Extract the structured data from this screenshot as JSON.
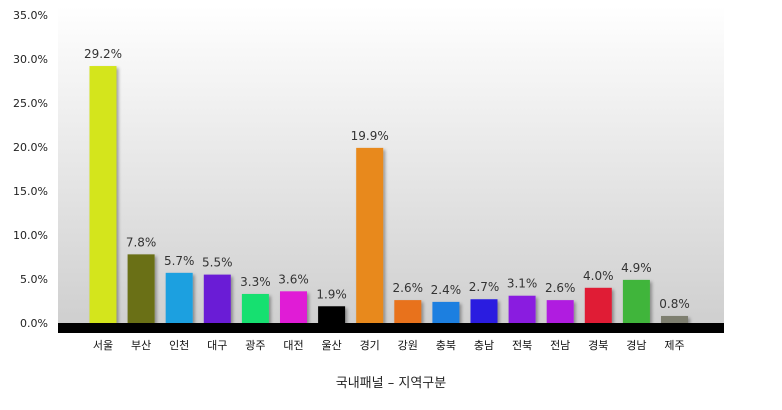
{
  "chart_data": {
    "type": "bar",
    "title": "",
    "xlabel": "국내패널 – 지역구분",
    "ylabel": "",
    "ylim": [
      0,
      35
    ],
    "y_ticks": [
      "0.0%",
      "5.0%",
      "10.0%",
      "15.0%",
      "20.0%",
      "25.0%",
      "30.0%",
      "35.0%"
    ],
    "grid": false,
    "legend": "none",
    "categories": [
      "서울",
      "부산",
      "인천",
      "대구",
      "광주",
      "대전",
      "울산",
      "경기",
      "강원",
      "충북",
      "충남",
      "전북",
      "전남",
      "경북",
      "경남",
      "제주"
    ],
    "values": [
      29.2,
      7.8,
      5.7,
      5.5,
      3.3,
      3.6,
      1.9,
      19.9,
      2.6,
      2.4,
      2.7,
      3.1,
      2.6,
      4.0,
      4.9,
      0.8
    ],
    "value_labels": [
      "29.2%",
      "7.8%",
      "5.7%",
      "5.5%",
      "3.3%",
      "3.6%",
      "1.9%",
      "19.9%",
      "2.6%",
      "2.4%",
      "2.7%",
      "3.1%",
      "2.6%",
      "4.0%",
      "4.9%",
      "0.8%"
    ],
    "colors": [
      "#d4e51c",
      "#6b7016",
      "#1fa0e0",
      "#6a1fd6",
      "#19e070",
      "#e01fd6",
      "#000000",
      "#e8891a",
      "#e8721a",
      "#1f7fe0",
      "#2a1fe0",
      "#8a1fe0",
      "#b01fe0",
      "#e01f35",
      "#40b53a",
      "#7e7f70"
    ],
    "background": {
      "top": "#ffffff",
      "bottom": "#cfcfcf",
      "floor": "#000000"
    }
  }
}
